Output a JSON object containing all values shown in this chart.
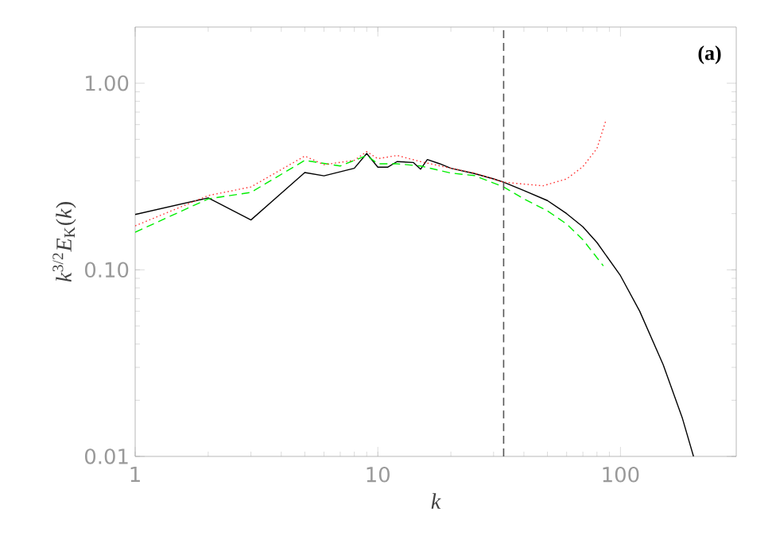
{
  "chart_data": {
    "type": "line",
    "xlabel": "k",
    "ylabel": "*k*$^{3/2}$*E*$_{K}$(*k*)",
    "log": "xy",
    "grid": false,
    "marker": "none",
    "xlim": [
      1,
      300
    ],
    "ylim": [
      0.01,
      2
    ],
    "xticks": [
      1,
      10,
      100
    ],
    "yticks": [
      0.01,
      {
        "value": 0.1,
        "label": "0.10"
      },
      {
        "value": 1,
        "label": "1.00"
      }
    ],
    "annotations": [
      "(a)"
    ],
    "ref_lines": [
      {
        "axis": "x",
        "value": 33,
        "color": "#555555",
        "line_style": "dashed"
      }
    ],
    "series": [
      {
        "color": "#000000",
        "line_style": "solid",
        "x": [
          1,
          2,
          3,
          5,
          6,
          8,
          9,
          10,
          11,
          12,
          14,
          15,
          16,
          18,
          20,
          25,
          30,
          33,
          40,
          50,
          60,
          70,
          80,
          100,
          120,
          150,
          180,
          200
        ],
        "values": [
          0.198,
          0.243,
          0.185,
          0.332,
          0.319,
          0.35,
          0.42,
          0.355,
          0.355,
          0.38,
          0.376,
          0.346,
          0.39,
          0.37,
          0.35,
          0.328,
          0.307,
          0.295,
          0.266,
          0.235,
          0.2,
          0.17,
          0.14,
          0.093,
          0.06,
          0.031,
          0.016,
          0.01
        ]
      },
      {
        "color": "#00ee00",
        "line_style": "dashed",
        "x": [
          1,
          2,
          3,
          5,
          7,
          9,
          10,
          12,
          15,
          20,
          25,
          33,
          40,
          50,
          60,
          70,
          85
        ],
        "values": [
          0.159,
          0.24,
          0.26,
          0.386,
          0.36,
          0.41,
          0.37,
          0.37,
          0.36,
          0.33,
          0.32,
          0.278,
          0.24,
          0.207,
          0.176,
          0.145,
          0.105
        ]
      },
      {
        "color": "#ff3333",
        "line_style": "dotted",
        "x": [
          1,
          2,
          3,
          5,
          6,
          8,
          9,
          10,
          12,
          15,
          20,
          25,
          33,
          40,
          48,
          60,
          70,
          80,
          87
        ],
        "values": [
          0.172,
          0.25,
          0.278,
          0.407,
          0.366,
          0.386,
          0.43,
          0.394,
          0.41,
          0.38,
          0.35,
          0.33,
          0.295,
          0.288,
          0.282,
          0.307,
          0.357,
          0.447,
          0.63
        ]
      }
    ]
  }
}
